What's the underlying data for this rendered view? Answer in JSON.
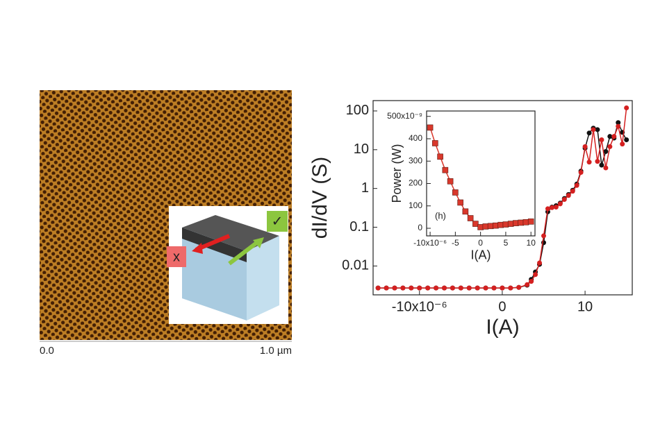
{
  "afm_image": {
    "scale_labels": [
      "0.0",
      "1.0 µm"
    ],
    "inset_labels": [
      "x",
      "✓"
    ]
  },
  "chart_data": [
    {
      "type": "line",
      "y_label": "dI/dV (S)",
      "x_label": "I(A)",
      "log_y": true,
      "marker": "circle",
      "xlim": [
        -15.6,
        15.7
      ],
      "ylim": [
        0.0018,
        185
      ],
      "xticks": [
        {
          "value": -10,
          "label": "-10x10⁻⁶"
        },
        0,
        10
      ],
      "yticks": [
        0.01,
        0.1,
        1,
        10,
        100
      ],
      "x": [
        -15,
        -14,
        -13,
        -12,
        -11,
        -10,
        -9,
        -8,
        -7,
        -6,
        -5,
        -4,
        -3,
        -2,
        -1,
        0,
        1,
        2,
        3,
        3.5,
        4,
        4.5,
        5,
        5.5,
        6,
        6.5,
        7,
        7.5,
        8,
        8.5,
        9,
        9.5,
        10,
        10.5,
        11,
        11.5,
        12,
        12.5,
        13,
        13.5,
        14,
        14.5,
        15
      ],
      "series": [
        {
          "color": "#111111",
          "values": [
            0.0027,
            0.0027,
            0.0027,
            0.0027,
            0.0027,
            0.0027,
            0.0027,
            0.0027,
            0.0027,
            0.0027,
            0.0027,
            0.0027,
            0.0027,
            0.0027,
            0.0027,
            0.0027,
            0.0027,
            0.0028,
            0.0032,
            0.0045,
            0.007,
            0.011,
            0.04,
            0.25,
            0.33,
            0.36,
            0.42,
            0.55,
            0.7,
            0.9,
            1.3,
            2.8,
            11,
            27,
            36,
            33,
            4,
            9,
            22,
            20,
            50,
            28,
            18
          ]
        },
        {
          "color": "#d42020",
          "values": [
            0.0027,
            0.0027,
            0.0027,
            0.0027,
            0.0027,
            0.0027,
            0.0027,
            0.0027,
            0.0027,
            0.0027,
            0.0027,
            0.0027,
            0.0027,
            0.0027,
            0.0027,
            0.0027,
            0.0027,
            0.0028,
            0.0033,
            0.004,
            0.006,
            0.012,
            0.06,
            0.3,
            0.32,
            0.33,
            0.4,
            0.52,
            0.66,
            0.85,
            1.2,
            2.6,
            12,
            4.8,
            33,
            5,
            18,
            3.4,
            12,
            22,
            40,
            14,
            120
          ]
        }
      ]
    },
    {
      "type": "line",
      "y_label": "Power (W)",
      "x_label": "I(A)",
      "annotation": "(h)",
      "marker": "square",
      "xlim": [
        -10.7,
        10.8
      ],
      "ylim": [
        -34,
        524
      ],
      "xticks": [
        {
          "value": -10,
          "label": "-10x10⁻⁶"
        },
        -5,
        0,
        5,
        10
      ],
      "yticks": [
        0,
        100,
        200,
        300,
        400,
        {
          "value": 500,
          "label": "500x10⁻⁹"
        }
      ],
      "x": [
        -10,
        -9,
        -8,
        -7,
        -6,
        -5,
        -4,
        -3,
        -2,
        -1,
        0,
        1,
        2,
        3,
        4,
        5,
        6,
        7,
        8,
        9,
        10
      ],
      "series": [
        {
          "color": "#d9382c",
          "values": [
            450,
            380,
            320,
            260,
            210,
            160,
            115,
            75,
            45,
            20,
            5,
            8,
            10,
            12,
            15,
            17,
            20,
            23,
            25,
            27,
            30
          ]
        }
      ]
    }
  ]
}
